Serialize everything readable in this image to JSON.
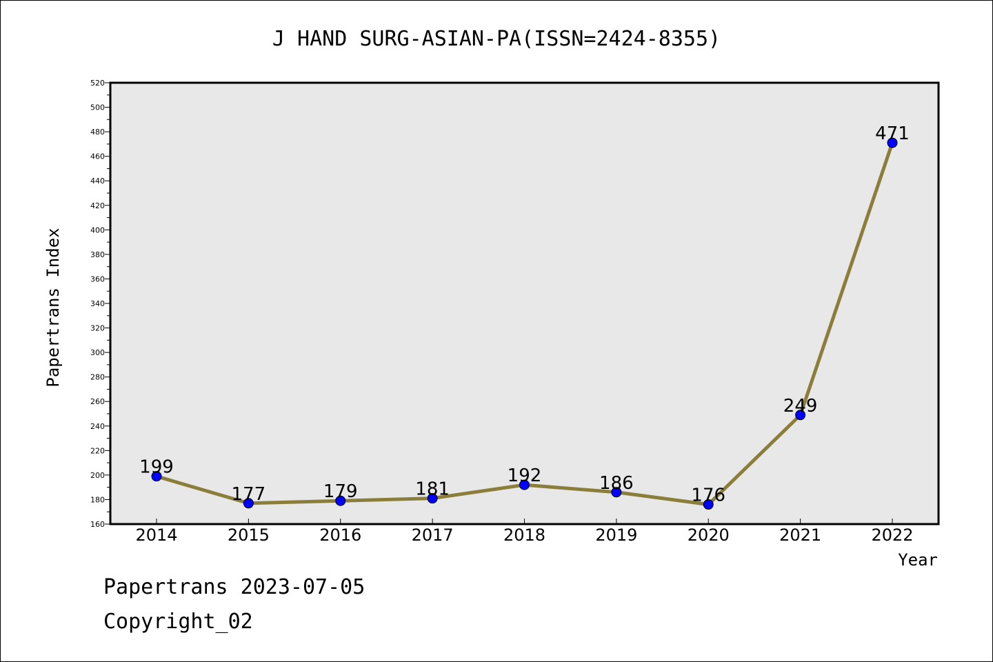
{
  "chart_data": {
    "type": "line",
    "title": "J HAND SURG-ASIAN-PA(ISSN=2424-8355)",
    "xlabel": "Year",
    "ylabel": "Papertrans Index",
    "categories": [
      "2014",
      "2015",
      "2016",
      "2017",
      "2018",
      "2019",
      "2020",
      "2021",
      "2022"
    ],
    "values": [
      199,
      177,
      179,
      181,
      192,
      186,
      176,
      249,
      471
    ],
    "ylim": [
      160,
      520
    ],
    "ytick_step": 20,
    "grid": false,
    "line_color": "#8b7d3a",
    "marker_color": "#0000ff",
    "plot_background": "#e8e8e8"
  },
  "footer": {
    "date_line": "Papertrans 2023-07-05",
    "copyright_line": "Copyright_02"
  }
}
